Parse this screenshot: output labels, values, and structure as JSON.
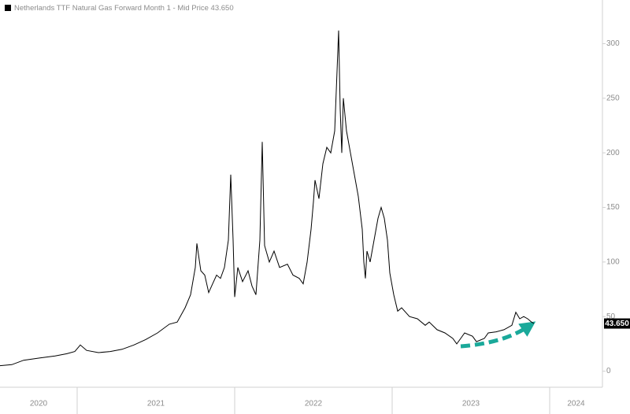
{
  "chart_data": {
    "type": "line",
    "x": [
      2020.51,
      2020.585,
      2020.66,
      2020.76,
      2020.86,
      2020.935,
      2020.985,
      2021.02,
      2021.06,
      2021.135,
      2021.21,
      2021.285,
      2021.36,
      2021.435,
      2021.51,
      2021.585,
      2021.635,
      2021.685,
      2021.72,
      2021.75,
      2021.76,
      2021.785,
      2021.81,
      2021.835,
      2021.86,
      2021.885,
      2021.91,
      2021.935,
      2021.96,
      2021.975,
      2021.99,
      2022.0,
      2022.02,
      2022.05,
      2022.085,
      2022.11,
      2022.135,
      2022.16,
      2022.175,
      2022.19,
      2022.22,
      2022.25,
      2022.285,
      2022.335,
      2022.37,
      2022.41,
      2022.435,
      2022.46,
      2022.485,
      2022.5,
      2022.51,
      2022.535,
      2022.56,
      2022.585,
      2022.61,
      2022.635,
      2022.65,
      2022.66,
      2022.67,
      2022.68,
      2022.69,
      2022.71,
      2022.735,
      2022.76,
      2022.785,
      2022.81,
      2022.82,
      2022.83,
      2022.84,
      2022.86,
      2022.885,
      2022.91,
      2022.93,
      2022.95,
      2022.97,
      2022.985,
      2023.01,
      2023.035,
      2023.06,
      2023.11,
      2023.16,
      2023.21,
      2023.235,
      2023.285,
      2023.335,
      2023.385,
      2023.41,
      2023.435,
      2023.46,
      2023.51,
      2023.535,
      2023.585,
      2023.61,
      2023.66,
      2023.71,
      2023.76,
      2023.785,
      2023.81,
      2023.835,
      2023.86,
      2023.885,
      2023.9
    ],
    "series": [
      {
        "name": "Netherlands TTF Natural Gas Forward Month 1 - Mid Price 43.650",
        "color": "#000000",
        "values": [
          5,
          6,
          10,
          12,
          14,
          16,
          18,
          24,
          19,
          17,
          18,
          20,
          24,
          29,
          35,
          43,
          45,
          58,
          70,
          95,
          117,
          92,
          88,
          72,
          80,
          88,
          85,
          95,
          120,
          180,
          120,
          68,
          95,
          82,
          92,
          78,
          70,
          120,
          210,
          115,
          100,
          110,
          95,
          98,
          88,
          85,
          80,
          100,
          130,
          155,
          175,
          158,
          190,
          205,
          200,
          220,
          275,
          312,
          240,
          200,
          250,
          220,
          200,
          180,
          160,
          130,
          100,
          85,
          110,
          100,
          120,
          140,
          150,
          140,
          120,
          90,
          70,
          55,
          58,
          50,
          48,
          42,
          45,
          38,
          35,
          30,
          25,
          30,
          35,
          32,
          27,
          30,
          35,
          36,
          38,
          42,
          54,
          48,
          50,
          48,
          45,
          43.65
        ]
      }
    ],
    "last_label": "43.650",
    "xlim": [
      2020.51,
      2024.335
    ],
    "xticks": [
      {
        "value": 2020,
        "label": "2020"
      },
      {
        "value": 2021,
        "label": "2021"
      },
      {
        "value": 2022,
        "label": "2022"
      },
      {
        "value": 2023,
        "label": "2023"
      },
      {
        "value": 2024,
        "label": "2024"
      }
    ],
    "ylim": [
      -14,
      340
    ],
    "yticks": [
      0,
      50,
      100,
      150,
      200,
      250,
      300
    ],
    "grid": false
  }
}
